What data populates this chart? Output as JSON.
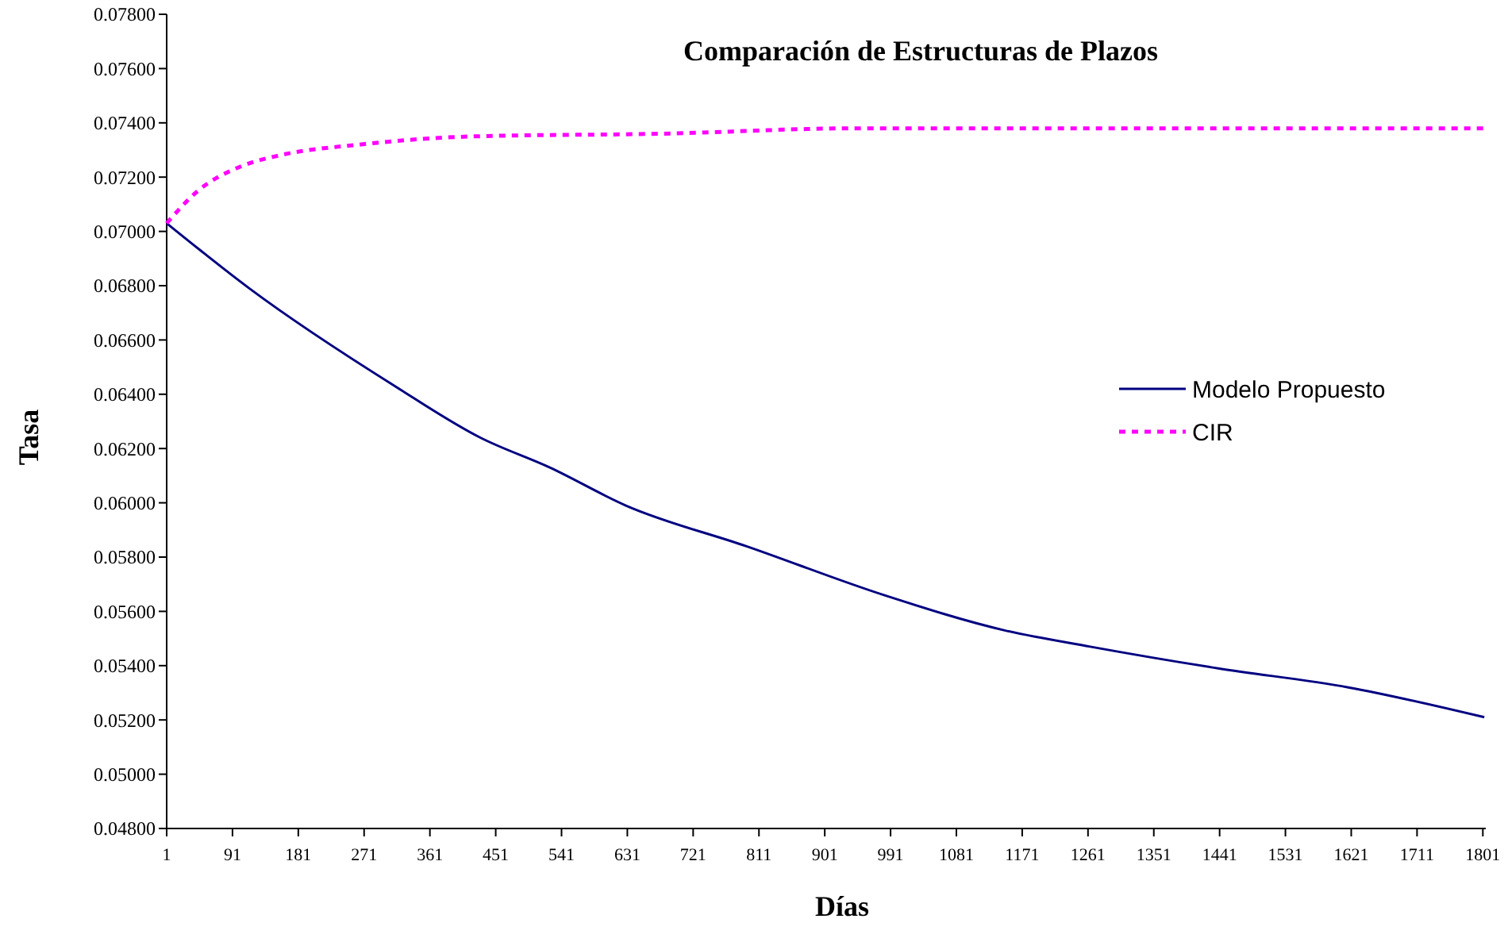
{
  "chart_data": {
    "type": "line",
    "title": "Comparación de Estructuras de Plazos",
    "xlabel": "Días",
    "ylabel": "Tasa",
    "xlim": [
      1,
      1805
    ],
    "xticks": [
      1,
      91,
      181,
      271,
      361,
      451,
      541,
      631,
      721,
      811,
      901,
      991,
      1081,
      1171,
      1261,
      1351,
      1441,
      1531,
      1621,
      1711,
      1801
    ],
    "ylim": [
      0.048,
      0.078
    ],
    "yticks": [
      {
        "value": 0.048,
        "label": "0.04800"
      },
      {
        "value": 0.05,
        "label": "0.05000"
      },
      {
        "value": 0.052,
        "label": "0.05200"
      },
      {
        "value": 0.054,
        "label": "0.05400"
      },
      {
        "value": 0.056,
        "label": "0.05600"
      },
      {
        "value": 0.058,
        "label": "0.05800"
      },
      {
        "value": 0.06,
        "label": "0.06000"
      },
      {
        "value": 0.062,
        "label": "0.06200"
      },
      {
        "value": 0.064,
        "label": "0.06400"
      },
      {
        "value": 0.066,
        "label": "0.06600"
      },
      {
        "value": 0.068,
        "label": "0.06800"
      },
      {
        "value": 0.07,
        "label": "0.07000"
      },
      {
        "value": 0.072,
        "label": "0.07200"
      },
      {
        "value": 0.074,
        "label": "0.07400"
      },
      {
        "value": 0.076,
        "label": "0.07600"
      },
      {
        "value": 0.078,
        "label": "0.07800"
      }
    ],
    "grid": false,
    "legend": "right",
    "series": [
      {
        "name": "Modelo Propuesto",
        "color": "#000080",
        "line_style": "solid",
        "x": [
          1,
          114,
          313,
          430,
          525,
          629,
          794,
          982,
          1147,
          1264,
          1439,
          1617,
          1803
        ],
        "values": [
          0.0703,
          0.0679,
          0.0643,
          0.0624,
          0.0613,
          0.0599,
          0.0584,
          0.0566,
          0.0553,
          0.0547,
          0.0539,
          0.0532,
          0.0521
        ]
      },
      {
        "name": "CIR",
        "color": "#ff00ff",
        "line_style": "dashed",
        "x": [
          1,
          44,
          103,
          155,
          265,
          419,
          677,
          948,
          1264,
          1803
        ],
        "values": [
          0.0703,
          0.0715,
          0.0724,
          0.0728,
          0.0732,
          0.0735,
          0.0736,
          0.0738,
          0.0738,
          0.0738
        ]
      }
    ]
  }
}
